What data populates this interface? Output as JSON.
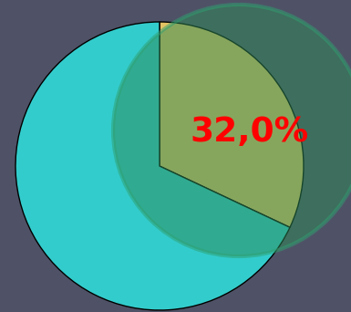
{
  "chart_data": {
    "type": "pie",
    "values": [
      32.0,
      68.0
    ],
    "value_labels": [
      "32,0%",
      null
    ],
    "colors": [
      "#e2c264",
      "#33cccc"
    ],
    "data_labels": true
  }
}
